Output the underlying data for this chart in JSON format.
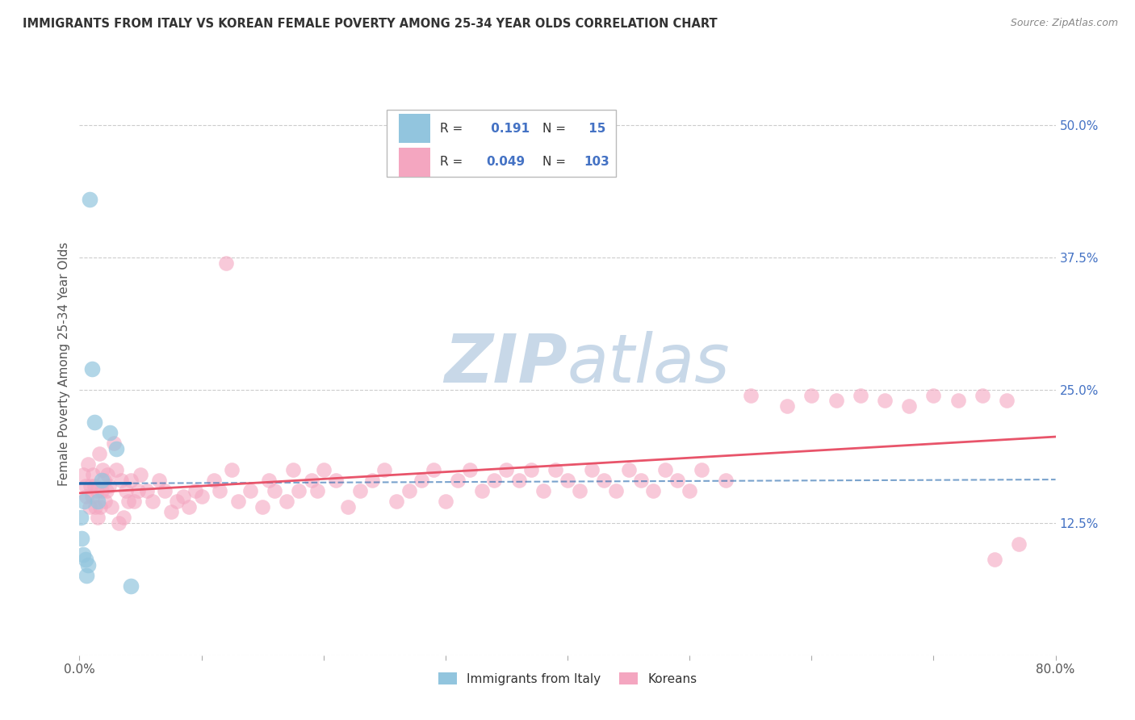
{
  "title": "IMMIGRANTS FROM ITALY VS KOREAN FEMALE POVERTY AMONG 25-34 YEAR OLDS CORRELATION CHART",
  "source": "Source: ZipAtlas.com",
  "ylabel": "Female Poverty Among 25-34 Year Olds",
  "xlim": [
    0.0,
    0.8
  ],
  "ylim": [
    0.0,
    0.55
  ],
  "xticks": [
    0.0,
    0.1,
    0.2,
    0.3,
    0.4,
    0.5,
    0.6,
    0.7,
    0.8
  ],
  "xticklabels": [
    "0.0%",
    "",
    "",
    "",
    "",
    "",
    "",
    "",
    "80.0%"
  ],
  "ytick_positions": [
    0.0,
    0.125,
    0.25,
    0.375,
    0.5
  ],
  "yticklabels": [
    "",
    "12.5%",
    "25.0%",
    "37.5%",
    "50.0%"
  ],
  "R_italy": 0.191,
  "N_italy": 15,
  "R_korean": 0.049,
  "N_korean": 103,
  "italy_color": "#92c5de",
  "korean_color": "#f4a6c0",
  "italy_line_color": "#2166ac",
  "korean_line_color": "#e8546a",
  "label_color": "#4472C4",
  "tick_label_color": "#4472C4",
  "watermark_color": "#c8d8e8",
  "italy_x": [
    0.001,
    0.002,
    0.003,
    0.004,
    0.005,
    0.006,
    0.007,
    0.008,
    0.01,
    0.012,
    0.015,
    0.018,
    0.025,
    0.03,
    0.042
  ],
  "italy_y": [
    0.13,
    0.11,
    0.095,
    0.145,
    0.09,
    0.075,
    0.085,
    0.43,
    0.27,
    0.22,
    0.145,
    0.165,
    0.21,
    0.195,
    0.065
  ],
  "korean_x": [
    0.003,
    0.005,
    0.006,
    0.007,
    0.008,
    0.009,
    0.01,
    0.011,
    0.012,
    0.013,
    0.014,
    0.015,
    0.016,
    0.017,
    0.018,
    0.019,
    0.02,
    0.021,
    0.022,
    0.023,
    0.024,
    0.026,
    0.028,
    0.03,
    0.032,
    0.034,
    0.036,
    0.038,
    0.04,
    0.042,
    0.045,
    0.048,
    0.05,
    0.055,
    0.06,
    0.065,
    0.07,
    0.075,
    0.08,
    0.085,
    0.09,
    0.095,
    0.1,
    0.11,
    0.115,
    0.12,
    0.125,
    0.13,
    0.14,
    0.15,
    0.155,
    0.16,
    0.17,
    0.175,
    0.18,
    0.19,
    0.195,
    0.2,
    0.21,
    0.22,
    0.23,
    0.24,
    0.25,
    0.26,
    0.27,
    0.28,
    0.29,
    0.3,
    0.31,
    0.32,
    0.33,
    0.34,
    0.35,
    0.36,
    0.37,
    0.38,
    0.39,
    0.4,
    0.41,
    0.42,
    0.43,
    0.44,
    0.45,
    0.46,
    0.47,
    0.48,
    0.49,
    0.5,
    0.51,
    0.53,
    0.55,
    0.58,
    0.6,
    0.62,
    0.64,
    0.66,
    0.68,
    0.7,
    0.72,
    0.74,
    0.75,
    0.76,
    0.77
  ],
  "korean_y": [
    0.17,
    0.16,
    0.15,
    0.18,
    0.14,
    0.16,
    0.15,
    0.17,
    0.16,
    0.14,
    0.155,
    0.13,
    0.19,
    0.14,
    0.155,
    0.175,
    0.165,
    0.145,
    0.155,
    0.17,
    0.16,
    0.14,
    0.2,
    0.175,
    0.125,
    0.165,
    0.13,
    0.155,
    0.145,
    0.165,
    0.145,
    0.155,
    0.17,
    0.155,
    0.145,
    0.165,
    0.155,
    0.135,
    0.145,
    0.15,
    0.14,
    0.155,
    0.15,
    0.165,
    0.155,
    0.37,
    0.175,
    0.145,
    0.155,
    0.14,
    0.165,
    0.155,
    0.145,
    0.175,
    0.155,
    0.165,
    0.155,
    0.175,
    0.165,
    0.14,
    0.155,
    0.165,
    0.175,
    0.145,
    0.155,
    0.165,
    0.175,
    0.145,
    0.165,
    0.175,
    0.155,
    0.165,
    0.175,
    0.165,
    0.175,
    0.155,
    0.175,
    0.165,
    0.155,
    0.175,
    0.165,
    0.155,
    0.175,
    0.165,
    0.155,
    0.175,
    0.165,
    0.155,
    0.175,
    0.165,
    0.245,
    0.235,
    0.245,
    0.24,
    0.245,
    0.24,
    0.235,
    0.245,
    0.24,
    0.245,
    0.09,
    0.24,
    0.105
  ]
}
